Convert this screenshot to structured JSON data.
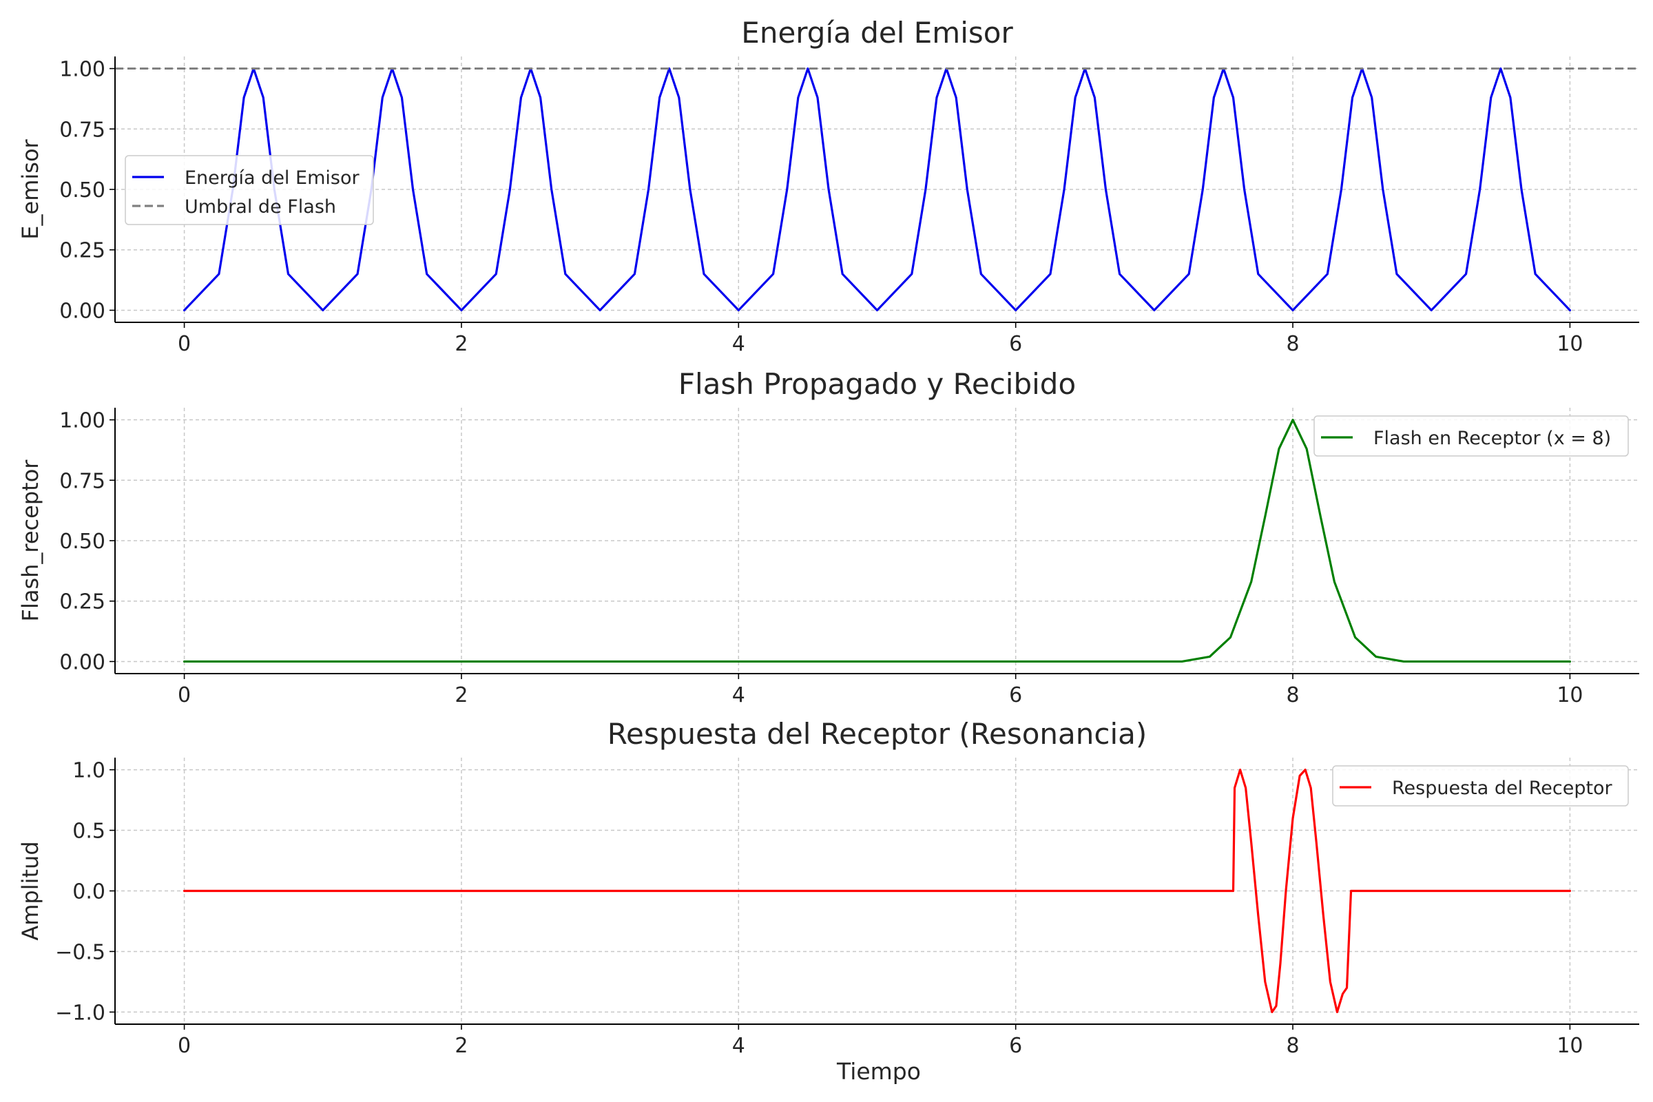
{
  "figure": {
    "xlabel": "Tiempo"
  },
  "chart_data": [
    {
      "type": "line",
      "title": "Energía del Emisor",
      "xlabel": "",
      "ylabel": "E_emisor",
      "xlim": [
        -0.5,
        10.5
      ],
      "ylim": [
        -0.05,
        1.05
      ],
      "xticks": [
        0,
        2,
        4,
        6,
        8,
        10
      ],
      "xtick_labels": [
        "0",
        "2",
        "4",
        "6",
        "8",
        "10"
      ],
      "yticks": [
        0,
        0.25,
        0.5,
        0.75,
        1.0
      ],
      "ytick_labels": [
        "0.00",
        "0.25",
        "0.50",
        "0.75",
        "1.00"
      ],
      "grid": true,
      "legend_position": "center-left",
      "x": [
        0,
        0.25,
        0.35,
        0.43,
        0.5,
        0.57,
        0.65,
        0.75,
        1.0,
        1.25,
        1.35,
        1.43,
        1.5,
        1.57,
        1.65,
        1.75,
        2.0,
        2.25,
        2.35,
        2.43,
        2.5,
        2.57,
        2.65,
        2.75,
        3.0,
        3.25,
        3.35,
        3.43,
        3.5,
        3.57,
        3.65,
        3.75,
        4.0,
        4.25,
        4.35,
        4.43,
        4.5,
        4.57,
        4.65,
        4.75,
        5.0,
        5.25,
        5.35,
        5.43,
        5.5,
        5.57,
        5.65,
        5.75,
        6.0,
        6.25,
        6.35,
        6.43,
        6.5,
        6.57,
        6.65,
        6.75,
        7.0,
        7.25,
        7.35,
        7.43,
        7.5,
        7.57,
        7.65,
        7.75,
        8.0,
        8.25,
        8.35,
        8.43,
        8.5,
        8.57,
        8.65,
        8.75,
        9.0,
        9.25,
        9.35,
        9.43,
        9.5,
        9.57,
        9.65,
        9.75,
        10.0
      ],
      "series": [
        {
          "name": "Energía del Emisor",
          "color": "#0000ee",
          "style": "solid",
          "values": [
            0,
            0.15,
            0.5,
            0.88,
            1.0,
            0.88,
            0.5,
            0.15,
            0,
            0.15,
            0.5,
            0.88,
            1.0,
            0.88,
            0.5,
            0.15,
            0,
            0.15,
            0.5,
            0.88,
            1.0,
            0.88,
            0.5,
            0.15,
            0,
            0.15,
            0.5,
            0.88,
            1.0,
            0.88,
            0.5,
            0.15,
            0,
            0.15,
            0.5,
            0.88,
            1.0,
            0.88,
            0.5,
            0.15,
            0,
            0.15,
            0.5,
            0.88,
            1.0,
            0.88,
            0.5,
            0.15,
            0,
            0.15,
            0.5,
            0.88,
            1.0,
            0.88,
            0.5,
            0.15,
            0,
            0.15,
            0.5,
            0.88,
            1.0,
            0.88,
            0.5,
            0.15,
            0,
            0.15,
            0.5,
            0.88,
            1.0,
            0.88,
            0.5,
            0.15,
            0,
            0.15,
            0.5,
            0.88,
            1.0,
            0.88,
            0.5,
            0.15,
            0
          ]
        },
        {
          "name": "Umbral de Flash",
          "color": "#808080",
          "style": "dashed",
          "x": [
            -0.5,
            10.5
          ],
          "values": [
            1.0,
            1.0
          ]
        }
      ]
    },
    {
      "type": "line",
      "title": "Flash Propagado y Recibido",
      "xlabel": "",
      "ylabel": "Flash_receptor",
      "xlim": [
        -0.5,
        10.5
      ],
      "ylim": [
        -0.05,
        1.05
      ],
      "xticks": [
        0,
        2,
        4,
        6,
        8,
        10
      ],
      "xtick_labels": [
        "0",
        "2",
        "4",
        "6",
        "8",
        "10"
      ],
      "yticks": [
        0,
        0.25,
        0.5,
        0.75,
        1.0
      ],
      "ytick_labels": [
        "0.00",
        "0.25",
        "0.50",
        "0.75",
        "1.00"
      ],
      "grid": true,
      "legend_position": "top-right",
      "x": [
        0,
        7.2,
        7.4,
        7.55,
        7.7,
        7.8,
        7.9,
        8.0,
        8.1,
        8.2,
        8.3,
        8.45,
        8.6,
        8.8,
        10.0
      ],
      "series": [
        {
          "name": "Flash en Receptor (x = 8)",
          "color": "#008000",
          "style": "solid",
          "values": [
            0,
            0,
            0.02,
            0.1,
            0.33,
            0.6,
            0.88,
            1.0,
            0.88,
            0.6,
            0.33,
            0.1,
            0.02,
            0,
            0
          ]
        }
      ]
    },
    {
      "type": "line",
      "title": "Respuesta del Receptor (Resonancia)",
      "xlabel": "Tiempo",
      "ylabel": "Amplitud",
      "xlim": [
        -0.5,
        10.5
      ],
      "ylim": [
        -1.1,
        1.1
      ],
      "xticks": [
        0,
        2,
        4,
        6,
        8,
        10
      ],
      "xtick_labels": [
        "0",
        "2",
        "4",
        "6",
        "8",
        "10"
      ],
      "yticks": [
        -1.0,
        -0.5,
        0,
        0.5,
        1.0
      ],
      "ytick_labels": [
        "−1.0",
        "−0.5",
        "0.0",
        "0.5",
        "1.0"
      ],
      "grid": true,
      "legend_position": "top-right",
      "x": [
        0,
        7.57,
        7.58,
        7.62,
        7.66,
        7.7,
        7.75,
        7.8,
        7.85,
        7.88,
        7.91,
        7.95,
        8.0,
        8.05,
        8.09,
        8.13,
        8.17,
        8.22,
        8.27,
        8.32,
        8.36,
        8.39,
        8.42,
        8.43,
        8.44,
        10.0
      ],
      "series": [
        {
          "name": "Respuesta del Receptor",
          "color": "#ff0000",
          "style": "solid",
          "values": [
            0,
            0,
            0.85,
            1.0,
            0.85,
            0.4,
            -0.2,
            -0.75,
            -1.0,
            -0.95,
            -0.6,
            0.0,
            0.6,
            0.95,
            1.0,
            0.85,
            0.4,
            -0.2,
            -0.75,
            -1.0,
            -0.85,
            -0.8,
            0,
            0,
            0,
            0
          ]
        }
      ]
    }
  ]
}
